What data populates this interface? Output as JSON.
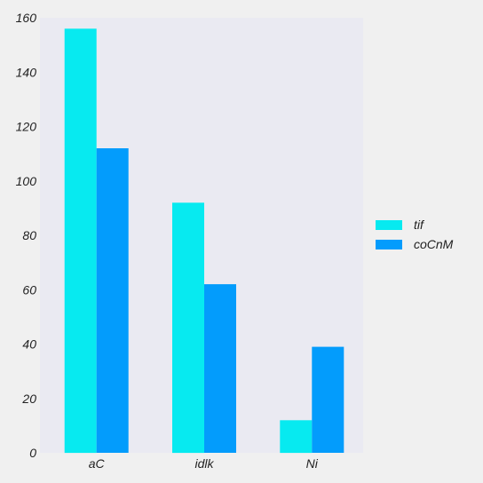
{
  "chart_data": {
    "type": "bar",
    "title": "",
    "xlabel": "",
    "ylabel": "",
    "categories": [
      "aC",
      "idlk",
      "Ni"
    ],
    "series": [
      {
        "name": "tif",
        "values": [
          156,
          92,
          12
        ],
        "color": "#07EAF0"
      },
      {
        "name": "coCnM",
        "values": [
          112,
          62,
          39
        ],
        "color": "#039CFC"
      }
    ],
    "ylim": [
      0,
      160
    ],
    "yticks": [
      "0",
      "20",
      "40",
      "60",
      "80",
      "100",
      "120",
      "140",
      "160"
    ],
    "grid": false,
    "legend": "right",
    "plot_background": "#EAEAF2",
    "page_background": "#F0F0F0"
  }
}
